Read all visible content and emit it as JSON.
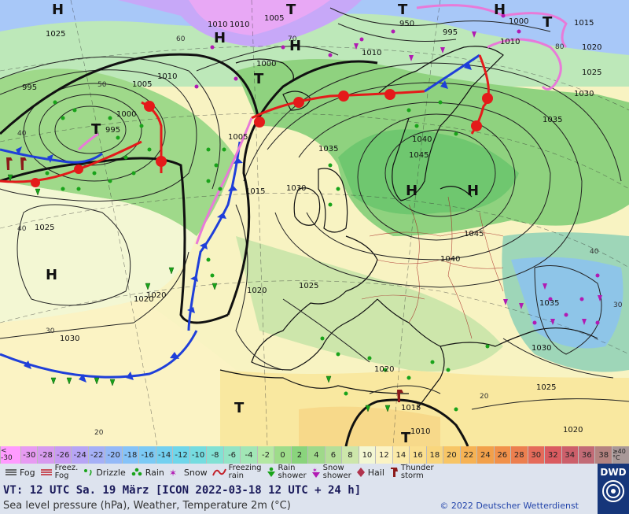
{
  "map": {
    "pressure_labels": [
      "1025",
      "1010",
      "1005",
      "1000",
      "995",
      "950",
      "995",
      "1000",
      "1015",
      "1020",
      "1010",
      "1010",
      "1005",
      "1000",
      "995",
      "1010",
      "1005",
      "1010",
      "1025",
      "1020",
      "1030",
      "1035",
      "1040",
      "1045",
      "1035",
      "1030",
      "1030",
      "1025",
      "1015",
      "1020",
      "1020",
      "1025",
      "1040",
      "1045",
      "1035",
      "1030",
      "1025",
      "1020",
      "1020",
      "1015",
      "1010",
      "1010",
      "1020"
    ],
    "high_low_labels": [
      "H",
      "H",
      "H",
      "T",
      "T",
      "T",
      "H",
      "H",
      "H",
      "H",
      "T",
      "T",
      "T",
      "T"
    ],
    "temp_labels": [
      "40",
      "50",
      "60",
      "70",
      "80",
      "40",
      "30",
      "20",
      "40",
      "20",
      "30"
    ],
    "colors": {
      "cold_front": "#1f3fd9",
      "warm_front": "#e41a1a",
      "occlusion": "#e87ad8",
      "rain_symbol": "#19a31a",
      "snow_symbol": "#b11ab3",
      "thunder_symbol": "#8c1a1a"
    }
  },
  "scale": {
    "values": [
      "< -30",
      "-30",
      "-28",
      "-26",
      "-24",
      "-22",
      "-20",
      "-18",
      "-16",
      "-14",
      "-12",
      "-10",
      "-8",
      "-6",
      "-4",
      "-2",
      "0",
      "2",
      "4",
      "6",
      "8",
      "10",
      "12",
      "14",
      "16",
      "18",
      "20",
      "22",
      "24",
      "26",
      "28",
      "30",
      "32",
      "34",
      "36",
      "38",
      "≥40 °C"
    ],
    "colors": [
      "#ff9bff",
      "#e79bf2",
      "#d79bef",
      "#c79bf2",
      "#b7a5f5",
      "#a5b0f7",
      "#94b9f8",
      "#86c3f8",
      "#7bcaf5",
      "#73d0f0",
      "#6fd6ea",
      "#75dce0",
      "#82e1d4",
      "#93e4c5",
      "#a2e6b6",
      "#b4e8a3",
      "#9edc8a",
      "#8ad47d",
      "#9fd98a",
      "#b5df99",
      "#cde6ab",
      "#f3f7d3",
      "#fbf3c4",
      "#fbeaa8",
      "#fbe090",
      "#f9d67d",
      "#f7c566",
      "#f6b254",
      "#f2a04a",
      "#f1914a",
      "#ec7f4f",
      "#e56b5a",
      "#da5b60",
      "#cc5f6a",
      "#c26b76",
      "#b48380",
      "#a89898"
    ]
  },
  "legend": {
    "fog": "Fog",
    "freezing_fog_1": "Freez.",
    "freezing_fog_2": "Fog",
    "drizzle": "Drizzle",
    "rain": "Rain",
    "snow": "Snow",
    "freezing_rain_1": "Freezing",
    "freezing_rain_2": "rain",
    "rain_shower_1": "Rain",
    "rain_shower_2": "shower",
    "snow_shower_1": "Snow",
    "snow_shower_2": "shower",
    "hail": "Hail",
    "thunder_1": "Thunder",
    "thunder_2": "storm"
  },
  "info": {
    "valid_time": "VT: 12 UTC Sa.  19 März [ICON 2022-03-18  12 UTC + 24 h]",
    "subtitle": "Sea level pressure (hPa), Weather, Temperature 2m (°C)",
    "copyright": "© 2022 Deutscher Wetterdienst"
  },
  "logo": {
    "text": "DWD"
  }
}
